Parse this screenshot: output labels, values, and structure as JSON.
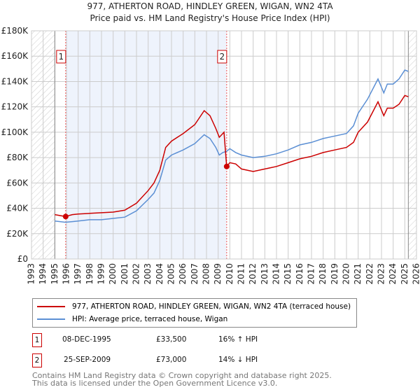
{
  "header": {
    "title": "977, ATHERTON ROAD, HINDLEY GREEN, WIGAN, WN2 4TA",
    "subtitle": "Price paid vs. HM Land Registry's House Price Index (HPI)"
  },
  "colors": {
    "property": "#cc0000",
    "hpi": "#5b8fd4",
    "shade": "#eef3fc",
    "grid": "#cccccc"
  },
  "chart_data": {
    "type": "line",
    "title": "977, ATHERTON ROAD, HINDLEY GREEN, WIGAN, WN2 4TA",
    "xlim": [
      1993,
      2026
    ],
    "ylim": [
      0,
      180000
    ],
    "x_ticks": [
      1993,
      1994,
      1995,
      1996,
      1997,
      1998,
      1999,
      2000,
      2001,
      2002,
      2003,
      2004,
      2005,
      2006,
      2007,
      2008,
      2009,
      2010,
      2011,
      2012,
      2013,
      2014,
      2015,
      2016,
      2017,
      2018,
      2019,
      2020,
      2021,
      2022,
      2023,
      2024,
      2025,
      2026
    ],
    "y_ticks": [
      {
        "v": 0,
        "label": "£0"
      },
      {
        "v": 20000,
        "label": "£20K"
      },
      {
        "v": 40000,
        "label": "£40K"
      },
      {
        "v": 60000,
        "label": "£60K"
      },
      {
        "v": 80000,
        "label": "£80K"
      },
      {
        "v": 100000,
        "label": "£100K"
      },
      {
        "v": 120000,
        "label": "£120K"
      },
      {
        "v": 140000,
        "label": "£140K"
      },
      {
        "v": 160000,
        "label": "£160K"
      },
      {
        "v": 180000,
        "label": "£180K"
      }
    ],
    "hatched_ranges": [
      [
        1993,
        1995
      ],
      [
        2025.3,
        2026
      ]
    ],
    "shaded_range": [
      1995.93,
      2009.73
    ],
    "grid": true,
    "series": [
      {
        "name": "977, ATHERTON ROAD, HINDLEY GREEN, WIGAN, WN2 4TA (terraced house)",
        "color": "#cc0000",
        "x": [
          1995,
          1995.9,
          1996.5,
          1997,
          1998,
          1999,
          2000,
          2001,
          2002,
          2003,
          2003.5,
          2004,
          2004.5,
          2005,
          2006,
          2007,
          2007.8,
          2008.3,
          2008.8,
          2009.1,
          2009.5,
          2009.73,
          2010,
          2010.5,
          2011,
          2012,
          2013,
          2014,
          2015,
          2016,
          2017,
          2018,
          2019,
          2020,
          2020.6,
          2021,
          2021.8,
          2022.7,
          2023.2,
          2023.5,
          2024,
          2024.5,
          2025,
          2025.3
        ],
        "y": [
          35000,
          33500,
          35000,
          35500,
          36000,
          36500,
          37000,
          38500,
          44000,
          54000,
          60000,
          70000,
          88000,
          93000,
          99000,
          106000,
          117000,
          113000,
          103000,
          96000,
          100000,
          73000,
          76000,
          75000,
          71000,
          69000,
          71000,
          73000,
          76000,
          79000,
          81000,
          84000,
          86000,
          88000,
          92000,
          100000,
          108000,
          124000,
          113000,
          119000,
          119000,
          122000,
          129000,
          128000
        ]
      },
      {
        "name": "HPI: Average price, terraced house, Wigan",
        "color": "#5b8fd4",
        "x": [
          1995,
          1995.9,
          1996.5,
          1997,
          1998,
          1999,
          2000,
          2001,
          2002,
          2003,
          2003.5,
          2004,
          2004.5,
          2005,
          2006,
          2007,
          2007.8,
          2008.3,
          2008.8,
          2009.1,
          2009.4,
          2009.73,
          2010,
          2010.5,
          2011,
          2012,
          2013,
          2014,
          2015,
          2016,
          2017,
          2018,
          2019,
          2020,
          2020.6,
          2021,
          2021.8,
          2022.7,
          2023.2,
          2023.5,
          2024,
          2024.5,
          2025,
          2025.3
        ],
        "y": [
          30000,
          29000,
          29500,
          30000,
          31000,
          31000,
          32000,
          33000,
          38000,
          47000,
          52000,
          62000,
          78000,
          82000,
          86000,
          91000,
          98000,
          95000,
          88000,
          82000,
          84000,
          85000,
          87000,
          84000,
          82000,
          80000,
          81000,
          83000,
          86000,
          90000,
          92000,
          95000,
          97000,
          99000,
          105000,
          115000,
          126000,
          142000,
          131000,
          138000,
          138000,
          142000,
          149000,
          148000
        ]
      }
    ],
    "annotations": [
      {
        "label": "1",
        "x": 1995.93,
        "y": 33500
      },
      {
        "label": "2",
        "x": 2009.73,
        "y": 73000
      }
    ]
  },
  "legend": {
    "property": "977, ATHERTON ROAD, HINDLEY GREEN, WIGAN, WN2 4TA (terraced house)",
    "hpi": "HPI: Average price, terraced house, Wigan"
  },
  "sales": [
    {
      "num": "1",
      "date": "08-DEC-1995",
      "price": "£33,500",
      "hpi": "16% ↑ HPI"
    },
    {
      "num": "2",
      "date": "25-SEP-2009",
      "price": "£73,000",
      "hpi": "14% ↓ HPI"
    }
  ],
  "footer": {
    "line1": "Contains HM Land Registry data © Crown copyright and database right 2025.",
    "line2": "This data is licensed under the Open Government Licence v3.0."
  }
}
